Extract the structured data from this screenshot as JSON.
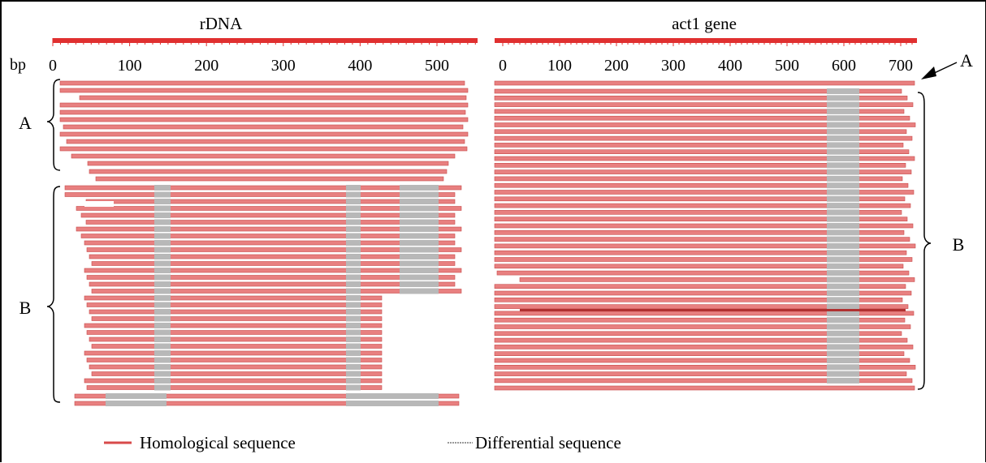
{
  "panels": [
    {
      "title": "rDNA",
      "axis_unit": "bp",
      "ticks": [
        0,
        100,
        200,
        300,
        400,
        500
      ],
      "max": 580,
      "groups": [
        {
          "label": "A",
          "rows": 11
        },
        {
          "label": "B",
          "rows": 42
        }
      ]
    },
    {
      "title": "act1 gene",
      "ticks": [
        0,
        100,
        200,
        300,
        400,
        500,
        600,
        700
      ],
      "max": 780,
      "top_marker": "A",
      "groups": [
        {
          "label": "B",
          "rows": 50
        }
      ]
    }
  ],
  "legend": {
    "homological": "Homological sequence",
    "differential": "Differential sequence"
  },
  "colors": {
    "homological": "#e88080",
    "homological_edge": "#c84a4a",
    "differential": "#b8b8b8",
    "ruler": "#e03030"
  }
}
